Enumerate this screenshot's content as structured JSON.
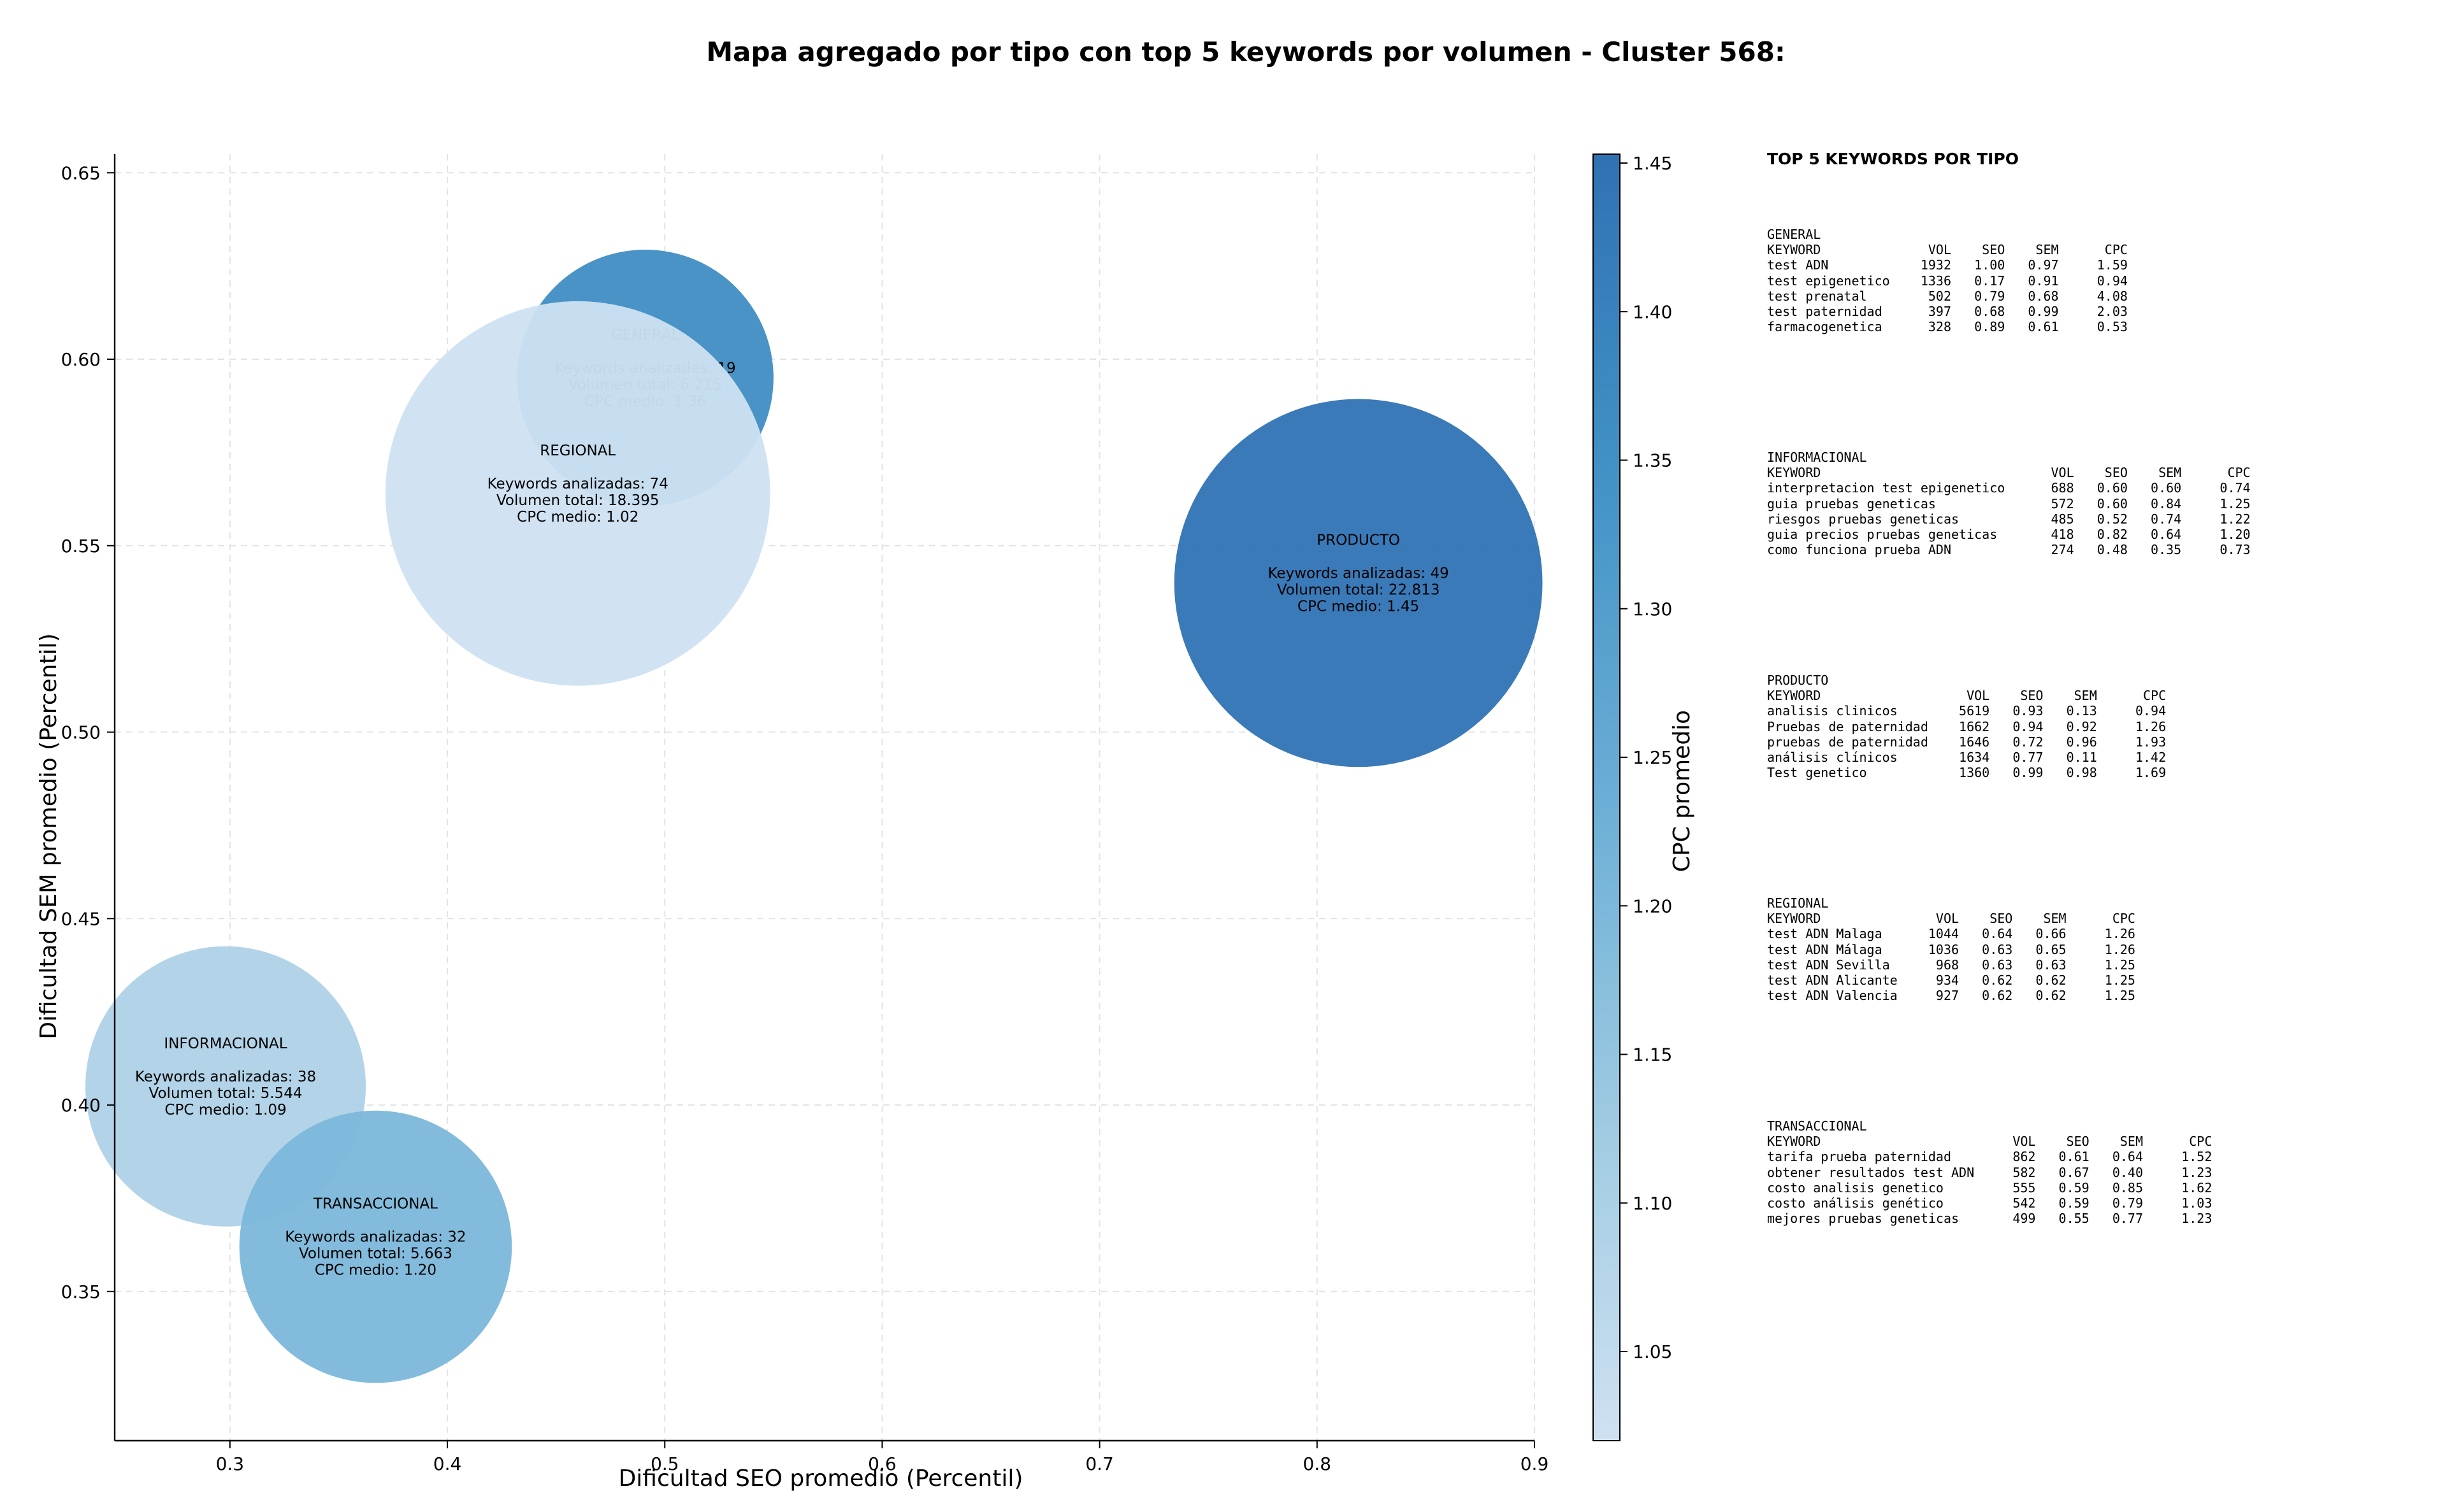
{
  "chart_data": {
    "type": "scatter",
    "title": "Mapa agregado por tipo con top 5 keywords por volumen - Cluster 568:",
    "xlabel": "Dificultad SEO promedio (Percentil)",
    "ylabel": "Dificultad SEM promedio (Percentil)",
    "colorbar_label": "CPC promedio",
    "xlim": [
      0.247,
      0.9
    ],
    "ylim": [
      0.31,
      0.655
    ],
    "xticks": [
      0.3,
      0.4,
      0.5,
      0.6,
      0.7,
      0.8,
      0.9
    ],
    "yticks": [
      0.35,
      0.4,
      0.45,
      0.5,
      0.55,
      0.6,
      0.65
    ],
    "colorbar_range": [
      1.02,
      1.453
    ],
    "colorbar_ticks": [
      1.05,
      1.1,
      1.15,
      1.2,
      1.25,
      1.3,
      1.35,
      1.4,
      1.45
    ],
    "grid": true,
    "colormap": [
      "#cfe1f2",
      "#9ecae1",
      "#6baed6",
      "#4292c6",
      "#2f72b4"
    ],
    "points": [
      {
        "name": "GENERAL",
        "x": 0.491,
        "y": 0.595,
        "keywords_label": "Keywords analizadas: 19",
        "volume_label": "Volumen total: 6.215",
        "cpc_label": "CPC medio: 1.36",
        "keywords": 19,
        "volume": 6215,
        "cpc": 1.36
      },
      {
        "name": "REGIONAL",
        "x": 0.46,
        "y": 0.564,
        "keywords_label": "Keywords analizadas: 74",
        "volume_label": "Volumen total: 18.395",
        "cpc_label": "CPC medio: 1.02",
        "keywords": 74,
        "volume": 18395,
        "cpc": 1.02
      },
      {
        "name": "PRODUCTO",
        "x": 0.819,
        "y": 0.54,
        "keywords_label": "Keywords analizadas: 49",
        "volume_label": "Volumen total: 22.813",
        "cpc_label": "CPC medio: 1.45",
        "keywords": 49,
        "volume": 22813,
        "cpc": 1.45
      },
      {
        "name": "INFORMACIONAL",
        "x": 0.298,
        "y": 0.405,
        "keywords_label": "Keywords analizadas: 38",
        "volume_label": "Volumen total: 5.544",
        "cpc_label": "CPC medio: 1.09",
        "keywords": 38,
        "volume": 5544,
        "cpc": 1.09
      },
      {
        "name": "TRANSACCIONAL",
        "x": 0.367,
        "y": 0.362,
        "keywords_label": "Keywords analizadas: 32",
        "volume_label": "Volumen total: 5.663",
        "cpc_label": "CPC medio: 1.20",
        "keywords": 32,
        "volume": 5663,
        "cpc": 1.2
      }
    ]
  },
  "top5_panel": {
    "title": "TOP 5 KEYWORDS POR TIPO",
    "blocks": [
      {
        "type": "GENERAL",
        "text": "GENERAL\nKEYWORD              VOL    SEO    SEM      CPC\ntest ADN            1932   1.00   0.97     1.59\ntest epigenetico    1336   0.17   0.91     0.94\ntest prenatal        502   0.79   0.68     4.08\ntest paternidad      397   0.68   0.99     2.03\nfarmacogenetica      328   0.89   0.61     0.53"
      },
      {
        "type": "INFORMACIONAL",
        "text": "INFORMACIONAL\nKEYWORD                              VOL    SEO    SEM      CPC\ninterpretacion test epigenetico      688   0.60   0.60     0.74\nguia pruebas geneticas               572   0.60   0.84     1.25\nriesgos pruebas geneticas            485   0.52   0.74     1.22\nguia precios pruebas geneticas       418   0.82   0.64     1.20\ncomo funciona prueba ADN             274   0.48   0.35     0.73"
      },
      {
        "type": "PRODUCTO",
        "text": "PRODUCTO\nKEYWORD                   VOL    SEO    SEM      CPC\nanalisis clinicos        5619   0.93   0.13     0.94\nPruebas de paternidad    1662   0.94   0.92     1.26\npruebas de paternidad    1646   0.72   0.96     1.93\nanálisis clínicos        1634   0.77   0.11     1.42\nTest genetico            1360   0.99   0.98     1.69"
      },
      {
        "type": "REGIONAL",
        "text": "REGIONAL\nKEYWORD               VOL    SEO    SEM      CPC\ntest ADN Malaga      1044   0.64   0.66     1.26\ntest ADN Málaga      1036   0.63   0.65     1.26\ntest ADN Sevilla      968   0.63   0.63     1.25\ntest ADN Alicante     934   0.62   0.62     1.25\ntest ADN Valencia     927   0.62   0.62     1.25"
      },
      {
        "type": "TRANSACCIONAL",
        "text": "TRANSACCIONAL\nKEYWORD                         VOL    SEO    SEM      CPC\ntarifa prueba paternidad        862   0.61   0.64     1.52\nobtener resultados test ADN     582   0.67   0.40     1.23\ncosto analisis genetico         555   0.59   0.85     1.62\ncosto análisis genético         542   0.59   0.79     1.03\nmejores pruebas geneticas       499   0.55   0.77     1.23"
      }
    ]
  }
}
